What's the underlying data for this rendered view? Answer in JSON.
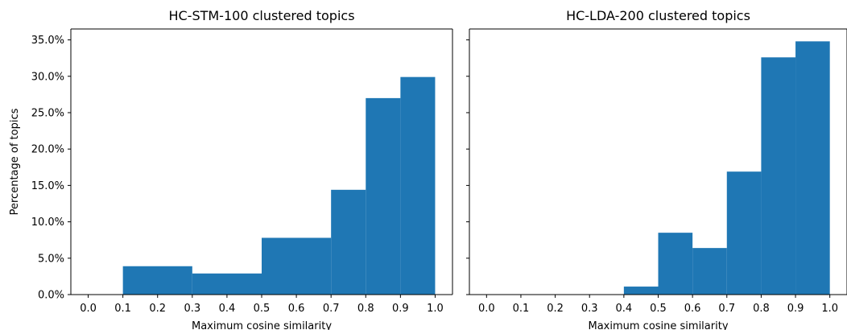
{
  "chart_data": [
    {
      "type": "bar",
      "title": "HC-STM-100 clustered topics",
      "xlabel": "Maximum cosine similarity",
      "ylabel": "Percentage of topics",
      "xlim": [
        -0.05,
        1.05
      ],
      "ylim": [
        0,
        36.5
      ],
      "x_ticks": [
        "0.0",
        "0.1",
        "0.2",
        "0.3",
        "0.4",
        "0.5",
        "0.6",
        "0.7",
        "0.8",
        "0.9",
        "1.0"
      ],
      "y_ticks": [
        "0.0%",
        "5.0%",
        "10.0%",
        "15.0%",
        "20.0%",
        "25.0%",
        "30.0%",
        "35.0%"
      ],
      "show_y_tick_labels": true,
      "bins": [
        {
          "x0": 0.0,
          "x1": 0.1,
          "value": 0
        },
        {
          "x0": 0.1,
          "x1": 0.3,
          "value": 3.9
        },
        {
          "x0": 0.3,
          "x1": 0.5,
          "value": 2.9
        },
        {
          "x0": 0.5,
          "x1": 0.7,
          "value": 7.8
        },
        {
          "x0": 0.7,
          "x1": 0.8,
          "value": 14.4
        },
        {
          "x0": 0.8,
          "x1": 0.9,
          "value": 27.0
        },
        {
          "x0": 0.9,
          "x1": 1.0,
          "value": 29.9
        }
      ],
      "color": "#1f77b4",
      "grid": false
    },
    {
      "type": "bar",
      "title": "HC-LDA-200 clustered topics",
      "xlabel": "Maximum cosine similarity",
      "ylabel": "",
      "xlim": [
        -0.05,
        1.05
      ],
      "ylim": [
        0,
        36.5
      ],
      "x_ticks": [
        "0.0",
        "0.1",
        "0.2",
        "0.3",
        "0.4",
        "0.5",
        "0.6",
        "0.7",
        "0.8",
        "0.9",
        "1.0"
      ],
      "y_ticks": [
        "0.0%",
        "5.0%",
        "10.0%",
        "15.0%",
        "20.0%",
        "25.0%",
        "30.0%",
        "35.0%"
      ],
      "show_y_tick_labels": false,
      "bins": [
        {
          "x0": 0.0,
          "x1": 0.4,
          "value": 0
        },
        {
          "x0": 0.4,
          "x1": 0.5,
          "value": 1.1
        },
        {
          "x0": 0.5,
          "x1": 0.6,
          "value": 8.5
        },
        {
          "x0": 0.6,
          "x1": 0.7,
          "value": 6.4
        },
        {
          "x0": 0.7,
          "x1": 0.8,
          "value": 16.9
        },
        {
          "x0": 0.8,
          "x1": 0.9,
          "value": 32.6
        },
        {
          "x0": 0.9,
          "x1": 1.0,
          "value": 34.8
        }
      ],
      "color": "#1f77b4",
      "grid": false
    }
  ]
}
